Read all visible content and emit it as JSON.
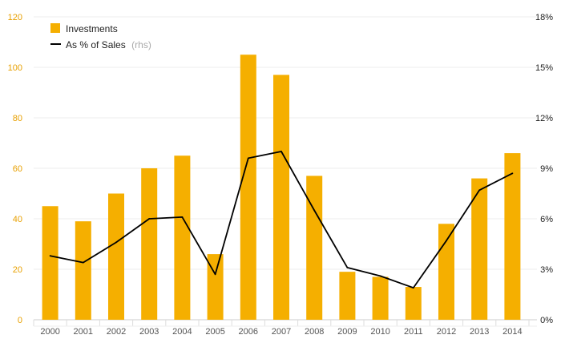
{
  "chart_data": {
    "type": "bar",
    "categories": [
      "2000",
      "2001",
      "2002",
      "2003",
      "2004",
      "2005",
      "2006",
      "2007",
      "2008",
      "2009",
      "2010",
      "2011",
      "2012",
      "2013",
      "2014"
    ],
    "series": [
      {
        "name": "Investments",
        "type": "bar",
        "axis": "left",
        "color": "#F5AF00",
        "values": [
          45,
          39,
          50,
          60,
          65,
          26,
          105,
          97,
          57,
          19,
          17,
          13,
          38,
          56,
          66
        ]
      },
      {
        "name": "As % of Sales",
        "name_suffix": "(rhs)",
        "type": "line",
        "axis": "right",
        "color": "#000000",
        "values": [
          3.8,
          3.4,
          4.6,
          6.0,
          6.1,
          2.7,
          9.6,
          10.0,
          6.5,
          3.1,
          2.6,
          1.9,
          4.7,
          7.7,
          8.7
        ]
      }
    ],
    "yaxis_left": {
      "min": 0,
      "max": 120,
      "ticks": [
        "0",
        "20",
        "40",
        "60",
        "80",
        "100",
        "120"
      ],
      "color": "#e8a000"
    },
    "yaxis_right": {
      "min": 0,
      "max": 18,
      "ticks": [
        "0%",
        "3%",
        "6%",
        "9%",
        "12%",
        "15%",
        "18%"
      ]
    },
    "grid": true,
    "legend_position": "top-left"
  }
}
